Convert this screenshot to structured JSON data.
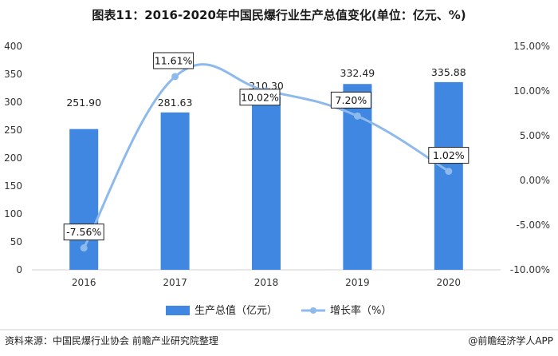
{
  "chart_data": {
    "type": "bar",
    "title": "图表11：2016-2020年中国民爆行业生产总值变化(单位：亿元、%)",
    "categories": [
      "2016",
      "2017",
      "2018",
      "2019",
      "2020"
    ],
    "series": [
      {
        "name": "生产总值（亿元）",
        "type": "bar",
        "axis": "left",
        "values": [
          251.9,
          281.63,
          310.3,
          332.49,
          335.88
        ],
        "labels": [
          "251.90",
          "281.63",
          "310.30",
          "332.49",
          "335.88"
        ],
        "color": "#3f87e0"
      },
      {
        "name": "增长率（%）",
        "type": "line",
        "axis": "right",
        "smooth": true,
        "values": [
          -7.56,
          11.61,
          10.02,
          7.2,
          1.02
        ],
        "labels": [
          "-7.56%",
          "11.61%",
          "10.02%",
          "7.20%",
          "1.02%"
        ],
        "color": "#8db9ec"
      }
    ],
    "left_axis": {
      "ylim": [
        0,
        400
      ],
      "ticks": [
        "0",
        "50",
        "100",
        "150",
        "200",
        "250",
        "300",
        "350",
        "400"
      ]
    },
    "right_axis": {
      "ylim": [
        -10,
        15
      ],
      "ticks": [
        "-10.00%",
        "-5.00%",
        "0.00%",
        "5.00%",
        "10.00%",
        "15.00%"
      ]
    },
    "legend": {
      "position": "bottom"
    },
    "grid": false
  },
  "footer": {
    "source": "资料来源：中国民爆行业协会 前瞻产业研究院整理",
    "brand": "@前瞻经济学人APP"
  },
  "colors": {
    "bar": "#3f87e0",
    "line": "#8db9ec",
    "axis": "#d0d0d0"
  }
}
